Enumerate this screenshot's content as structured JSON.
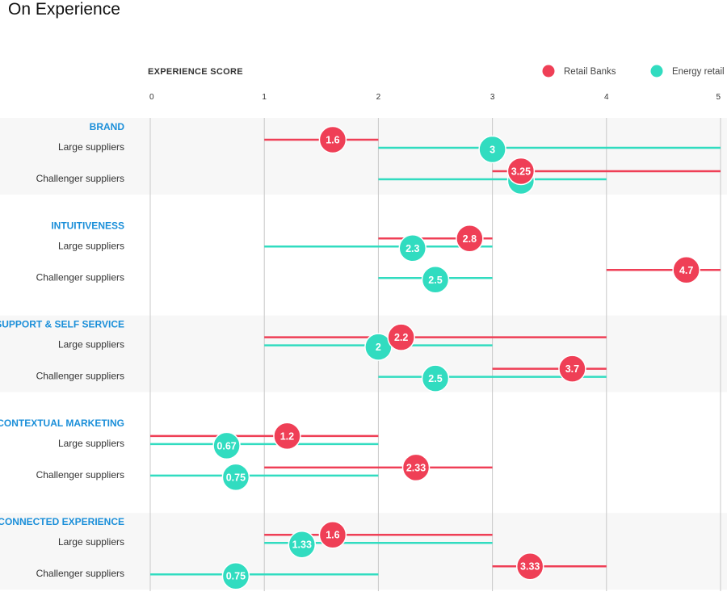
{
  "page_title": "On Experience",
  "chart_data": {
    "type": "range-dot",
    "xlabel": "EXPERIENCE SCORE",
    "xlim": [
      0,
      5
    ],
    "x_ticks": [
      "0",
      "1",
      "2",
      "3",
      "4",
      "5"
    ],
    "legend": {
      "position": "top-right",
      "items": [
        {
          "name": "Retail Banks",
          "color": "#ef3f56"
        },
        {
          "name": "Energy retail",
          "color": "#31dcc0"
        }
      ]
    },
    "grid": true,
    "series": [
      {
        "name": "Retail Banks",
        "color": "#ef3f56"
      },
      {
        "name": "Energy retail",
        "color": "#31dcc0"
      }
    ],
    "groups": [
      {
        "label": "BRAND",
        "rows": [
          {
            "label": "Large suppliers",
            "retail_banks": {
              "min": 1,
              "max": 2,
              "value": 1.6,
              "display": "1.6"
            },
            "energy_retail": {
              "min": 2,
              "max": 5,
              "value": 3,
              "display": "3"
            }
          },
          {
            "label": "Challenger suppliers",
            "retail_banks": {
              "min": 3,
              "max": 5,
              "value": 3.25,
              "display": "3.25"
            },
            "energy_retail": {
              "min": 2,
              "max": 4,
              "value": 3.25,
              "display": ""
            }
          }
        ]
      },
      {
        "label": "INTUITIVENESS",
        "rows": [
          {
            "label": "Large suppliers",
            "retail_banks": {
              "min": 2,
              "max": 3,
              "value": 2.8,
              "display": "2.8"
            },
            "energy_retail": {
              "min": 1,
              "max": 3,
              "value": 2.3,
              "display": "2.3"
            }
          },
          {
            "label": "Challenger suppliers",
            "retail_banks": {
              "min": 4,
              "max": 5,
              "value": 4.7,
              "display": "4.7"
            },
            "energy_retail": {
              "min": 2,
              "max": 3,
              "value": 2.5,
              "display": "2.5"
            }
          }
        ]
      },
      {
        "label": "SUPPORT & SELF SERVICE",
        "rows": [
          {
            "label": "Large suppliers",
            "retail_banks": {
              "min": 1,
              "max": 4,
              "value": 2.2,
              "display": "2.2"
            },
            "energy_retail": {
              "min": 1,
              "max": 3,
              "value": 2,
              "display": "2"
            }
          },
          {
            "label": "Challenger suppliers",
            "retail_banks": {
              "min": 3,
              "max": 4,
              "value": 3.7,
              "display": "3.7"
            },
            "energy_retail": {
              "min": 2,
              "max": 4,
              "value": 2.5,
              "display": "2.5"
            }
          }
        ]
      },
      {
        "label": "CONTEXTUAL MARKETING",
        "rows": [
          {
            "label": "Large suppliers",
            "retail_banks": {
              "min": 0,
              "max": 2,
              "value": 1.2,
              "display": "1.2"
            },
            "energy_retail": {
              "min": 0,
              "max": 2,
              "value": 0.67,
              "display": "0.67"
            }
          },
          {
            "label": "Challenger suppliers",
            "retail_banks": {
              "min": 1,
              "max": 3,
              "value": 2.33,
              "display": "2.33"
            },
            "energy_retail": {
              "min": 0,
              "max": 2,
              "value": 0.75,
              "display": "0.75"
            }
          }
        ]
      },
      {
        "label": "CONNECTED EXPERIENCE",
        "rows": [
          {
            "label": "Large suppliers",
            "retail_banks": {
              "min": 1,
              "max": 3,
              "value": 1.6,
              "display": "1.6"
            },
            "energy_retail": {
              "min": 1,
              "max": 3,
              "value": 1.33,
              "display": "1.33"
            }
          },
          {
            "label": "Challenger suppliers",
            "retail_banks": {
              "min": 3,
              "max": 4,
              "value": 3.33,
              "display": "3.33"
            },
            "energy_retail": {
              "min": 0,
              "max": 2,
              "value": 0.75,
              "display": "0.75"
            }
          }
        ]
      }
    ]
  }
}
